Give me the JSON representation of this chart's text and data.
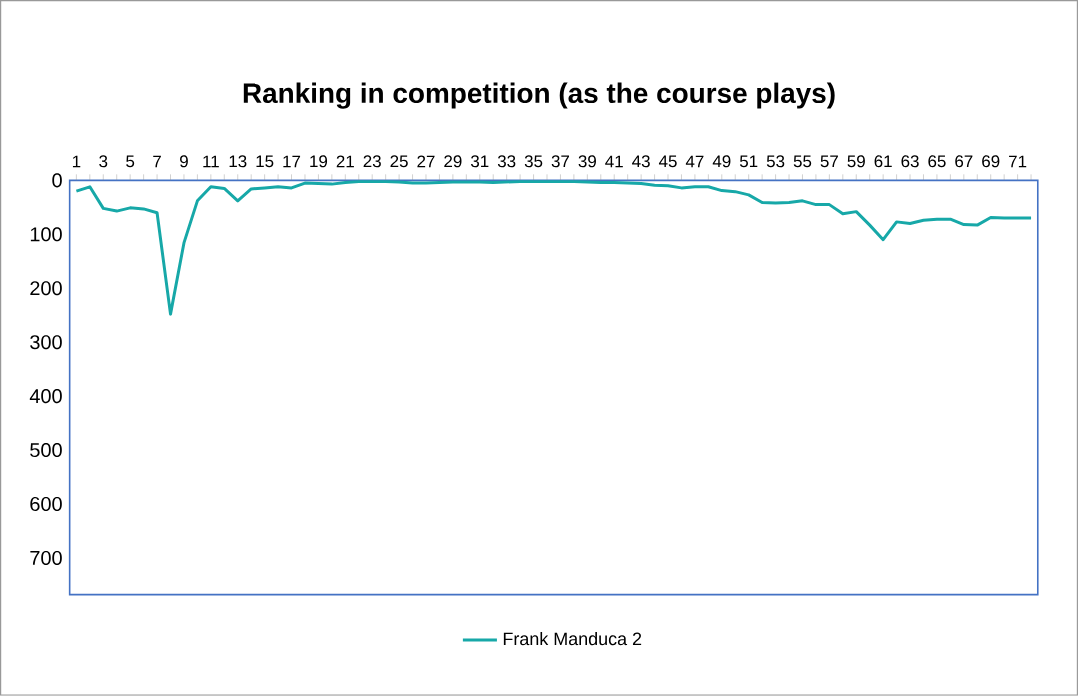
{
  "chart_data": {
    "type": "line",
    "title": "Ranking in competition (as the course plays)",
    "categories": [
      "1",
      null,
      "3",
      null,
      "5",
      null,
      "7",
      null,
      "9",
      null,
      "11",
      null,
      "13",
      null,
      "15",
      null,
      "17",
      null,
      "19",
      null,
      "21",
      null,
      "23",
      null,
      "25",
      null,
      "27",
      null,
      "29",
      null,
      "31",
      null,
      "33",
      null,
      "35",
      null,
      "37",
      null,
      "39",
      null,
      "41",
      null,
      "43",
      null,
      "45",
      null,
      "47",
      null,
      "49",
      null,
      "51",
      null,
      "53",
      null,
      "55",
      null,
      "57",
      null,
      "59",
      null,
      "61",
      null,
      "63",
      null,
      "65",
      null,
      "67",
      null,
      "69",
      null,
      "71",
      null
    ],
    "series": [
      {
        "name": "Frank Manduca 2",
        "color": "#17a8a8",
        "values": [
          20,
          12,
          52,
          57,
          51,
          53,
          60,
          248,
          116,
          38,
          12,
          15,
          38,
          16,
          14,
          12,
          14,
          5,
          6,
          7,
          4,
          2,
          2,
          2,
          3,
          5,
          5,
          4,
          3,
          3,
          3,
          4,
          3,
          2,
          2,
          2,
          2,
          2,
          3,
          4,
          4,
          5,
          6,
          9,
          10,
          14,
          12,
          12,
          19,
          21,
          27,
          41,
          42,
          41,
          38,
          45,
          45,
          62,
          58,
          83,
          110,
          77,
          80,
          74,
          72,
          72,
          82,
          83,
          69,
          70,
          70,
          70
        ]
      }
    ],
    "ylim": [
      768,
      0
    ],
    "yticks": [
      0,
      100,
      200,
      300,
      400,
      500,
      600,
      700
    ],
    "legend": "bottom",
    "grid": false,
    "marker": "none",
    "line_style": "solid"
  }
}
